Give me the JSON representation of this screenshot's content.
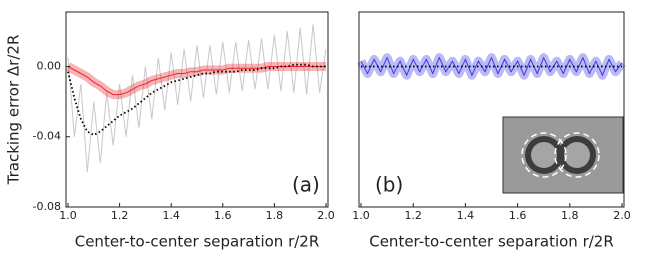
{
  "chart_data": [
    {
      "type": "line",
      "panel_label": "(a)",
      "y_label": "Tracking error Δr/2R",
      "x_label": "Center-to-center separation r/2R",
      "xlim": [
        1.0,
        2.0
      ],
      "xticks": [
        {
          "value": 1,
          "label": "1.0"
        },
        {
          "value": 1.2,
          "label": "1.2"
        },
        {
          "value": 1.4,
          "label": "1.4"
        },
        {
          "value": 1.6,
          "label": "1.6"
        },
        {
          "value": 1.8,
          "label": "1.8"
        },
        {
          "value": 2,
          "label": "2.0"
        }
      ],
      "ylim": [
        -0.08,
        0.031
      ],
      "yticks": [
        {
          "value": 0,
          "label": "0.00"
        },
        {
          "value": -0.04,
          "label": "-0.04"
        },
        {
          "value": -0.08,
          "label": "-0.08"
        }
      ],
      "x": [
        1.0,
        1.025,
        1.05,
        1.075,
        1.1,
        1.125,
        1.15,
        1.175,
        1.2,
        1.225,
        1.25,
        1.275,
        1.3,
        1.325,
        1.35,
        1.375,
        1.4,
        1.425,
        1.45,
        1.475,
        1.5,
        1.525,
        1.55,
        1.575,
        1.6,
        1.625,
        1.65,
        1.675,
        1.7,
        1.725,
        1.75,
        1.775,
        1.8,
        1.825,
        1.85,
        1.875,
        1.9,
        1.925,
        1.95,
        1.975,
        2.0
      ],
      "series": [
        {
          "color": "#c8c8c8",
          "linestyle": "solid",
          "band": false,
          "values": [
            0.005,
            -0.04,
            -0.01,
            -0.06,
            -0.02,
            -0.055,
            -0.015,
            -0.045,
            -0.01,
            -0.04,
            -0.005,
            -0.035,
            0,
            -0.03,
            0.005,
            -0.025,
            0.008,
            -0.022,
            0.01,
            -0.02,
            0.012,
            -0.018,
            0.012,
            -0.016,
            0.014,
            -0.015,
            0.014,
            -0.014,
            0.015,
            -0.013,
            0.016,
            -0.013,
            0.018,
            -0.014,
            0.02,
            -0.015,
            0.022,
            -0.016,
            0.024,
            -0.015,
            0.01
          ]
        },
        {
          "color": "#e8282d",
          "linestyle": "solid",
          "band": true,
          "values": [
            0,
            -0.002,
            -0.004,
            -0.006,
            -0.009,
            -0.011,
            -0.014,
            -0.016,
            -0.016,
            -0.015,
            -0.013,
            -0.011,
            -0.01,
            -0.008,
            -0.007,
            -0.006,
            -0.005,
            -0.004,
            -0.004,
            -0.003,
            -0.003,
            -0.002,
            -0.002,
            -0.002,
            -0.002,
            -0.001,
            -0.001,
            -0.001,
            -0.001,
            -0.001,
            -0.001,
            0,
            0,
            0,
            0,
            0,
            0,
            0,
            0,
            0,
            0
          ]
        },
        {
          "color": "#000000",
          "linestyle": "dotted",
          "band": false,
          "values": [
            -0.003,
            -0.018,
            -0.03,
            -0.037,
            -0.039,
            -0.037,
            -0.034,
            -0.031,
            -0.028,
            -0.026,
            -0.024,
            -0.021,
            -0.018,
            -0.015,
            -0.013,
            -0.011,
            -0.009,
            -0.008,
            -0.007,
            -0.006,
            -0.005,
            -0.004,
            -0.004,
            -0.003,
            -0.003,
            -0.003,
            -0.003,
            -0.002,
            -0.002,
            -0.002,
            -0.001,
            -0.001,
            -0.001,
            0,
            0,
            0.001,
            0.001,
            0.001,
            0,
            0,
            0
          ]
        }
      ]
    },
    {
      "type": "line",
      "panel_label": "(b)",
      "x_label": "Center-to-center separation r/2R",
      "xlim": [
        1.0,
        2.0
      ],
      "xticks": [
        {
          "value": 1,
          "label": "1.0"
        },
        {
          "value": 1.2,
          "label": "1.2"
        },
        {
          "value": 1.4,
          "label": "1.4"
        },
        {
          "value": 1.6,
          "label": "1.6"
        },
        {
          "value": 1.8,
          "label": "1.8"
        },
        {
          "value": 2,
          "label": "2.0"
        }
      ],
      "ylim": [
        -0.08,
        0.031
      ],
      "x": [
        1.0,
        1.025,
        1.05,
        1.075,
        1.1,
        1.125,
        1.15,
        1.175,
        1.2,
        1.225,
        1.25,
        1.275,
        1.3,
        1.325,
        1.35,
        1.375,
        1.4,
        1.425,
        1.45,
        1.475,
        1.5,
        1.525,
        1.55,
        1.575,
        1.6,
        1.625,
        1.65,
        1.675,
        1.7,
        1.725,
        1.75,
        1.775,
        1.8,
        1.825,
        1.85,
        1.875,
        1.9,
        1.925,
        1.95,
        1.975,
        2.0
      ],
      "series": [
        {
          "color": "#3a3ae0",
          "linestyle": "solid",
          "band": true,
          "values": [
            0.003,
            -0.004,
            0.004,
            -0.003,
            0.005,
            -0.004,
            0.003,
            -0.005,
            0.004,
            -0.003,
            0.004,
            -0.004,
            0.005,
            -0.003,
            0.003,
            -0.004,
            0.004,
            -0.005,
            0.003,
            -0.003,
            0.005,
            -0.004,
            0.004,
            -0.003,
            0.003,
            -0.005,
            0.004,
            -0.004,
            0.005,
            -0.003,
            0.003,
            -0.004,
            0.004,
            -0.003,
            0.005,
            -0.004,
            0.003,
            -0.005,
            0.004,
            -0.003,
            0.002
          ]
        },
        {
          "color": "#000000",
          "linestyle": "dotted",
          "band": false,
          "values": [
            0,
            0,
            0,
            0,
            0,
            0,
            0,
            0,
            0,
            0,
            0,
            0,
            0,
            0,
            0,
            0,
            0,
            0,
            0,
            0,
            0,
            0,
            0,
            0,
            0,
            0,
            0,
            0,
            0,
            0,
            0,
            0,
            0,
            0,
            0,
            0,
            0,
            0,
            0,
            0,
            0
          ]
        }
      ]
    }
  ]
}
